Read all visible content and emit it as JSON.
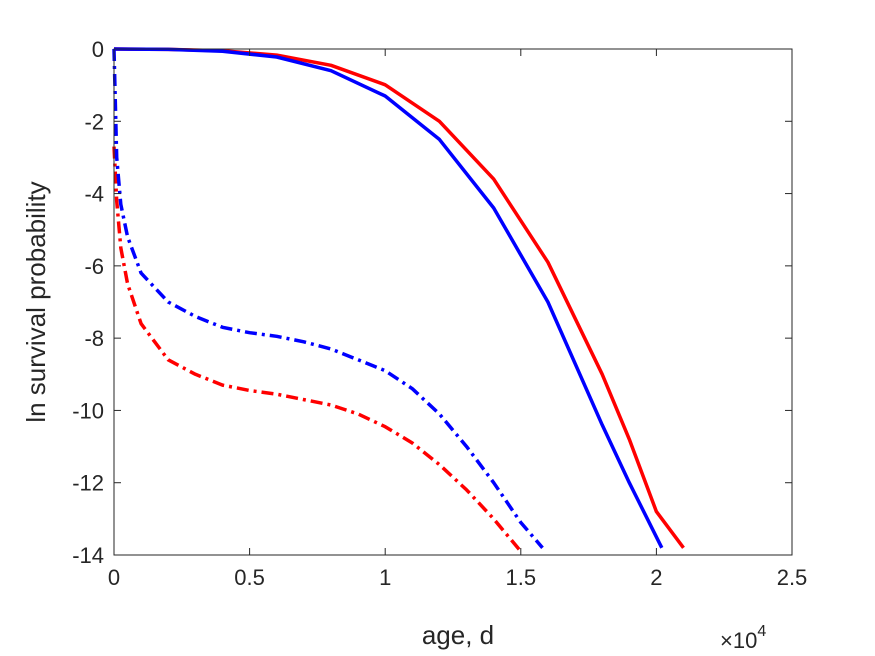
{
  "chart_data": {
    "type": "line",
    "title": "",
    "xlabel": "age, d",
    "ylabel": "ln survival probability",
    "x_exponent_label": "×10",
    "x_exponent_power": "4",
    "xlim": [
      0,
      25000
    ],
    "ylim": [
      -14,
      0
    ],
    "x_ticks": [
      0,
      5000,
      10000,
      15000,
      20000,
      25000
    ],
    "x_tick_labels": [
      "0",
      "0.5",
      "1",
      "1.5",
      "2",
      "2.5"
    ],
    "y_ticks": [
      0,
      -2,
      -4,
      -6,
      -8,
      -10,
      -12,
      -14
    ],
    "y_tick_labels": [
      "0",
      "-2",
      "-4",
      "-6",
      "-8",
      "-10",
      "-12",
      "-14"
    ],
    "grid": false,
    "series": [
      {
        "color": "#ff0000",
        "style": "solid",
        "x": [
          0,
          2000,
          4000,
          6000,
          8000,
          10000,
          12000,
          14000,
          16000,
          18000,
          19000,
          20000,
          21000
        ],
        "y": [
          0,
          -0.01,
          -0.05,
          -0.17,
          -0.45,
          -0.99,
          -2.0,
          -3.6,
          -5.9,
          -9.0,
          -10.8,
          -12.8,
          -13.8
        ]
      },
      {
        "color": "#0000ff",
        "style": "solid",
        "x": [
          0,
          2000,
          4000,
          6000,
          8000,
          10000,
          12000,
          14000,
          16000,
          18000,
          19000,
          20200
        ],
        "y": [
          0,
          -0.01,
          -0.06,
          -0.22,
          -0.6,
          -1.3,
          -2.5,
          -4.4,
          -7.0,
          -10.4,
          -12.0,
          -13.8
        ]
      },
      {
        "color": "#ff0000",
        "style": "dashdot",
        "x": [
          0,
          100,
          250,
          500,
          1000,
          2000,
          3000,
          4000,
          5000,
          6000,
          7000,
          8000,
          9000,
          10000,
          11000,
          12000,
          13000,
          14000,
          15000
        ],
        "y": [
          -2.7,
          -4.2,
          -5.5,
          -6.5,
          -7.6,
          -8.6,
          -9.0,
          -9.3,
          -9.45,
          -9.55,
          -9.7,
          -9.85,
          -10.1,
          -10.45,
          -10.9,
          -11.5,
          -12.2,
          -13.0,
          -13.9
        ]
      },
      {
        "color": "#0000ff",
        "style": "dashdot",
        "x": [
          0,
          100,
          250,
          500,
          1000,
          2000,
          3000,
          4000,
          5000,
          6000,
          7000,
          8000,
          9000,
          10000,
          11000,
          12000,
          13000,
          14000,
          15000,
          15800
        ],
        "y": [
          0,
          -3.0,
          -4.3,
          -5.2,
          -6.2,
          -7.0,
          -7.4,
          -7.7,
          -7.85,
          -7.95,
          -8.1,
          -8.3,
          -8.6,
          -8.9,
          -9.4,
          -10.1,
          -11.0,
          -12.0,
          -13.1,
          -13.8
        ]
      }
    ]
  }
}
